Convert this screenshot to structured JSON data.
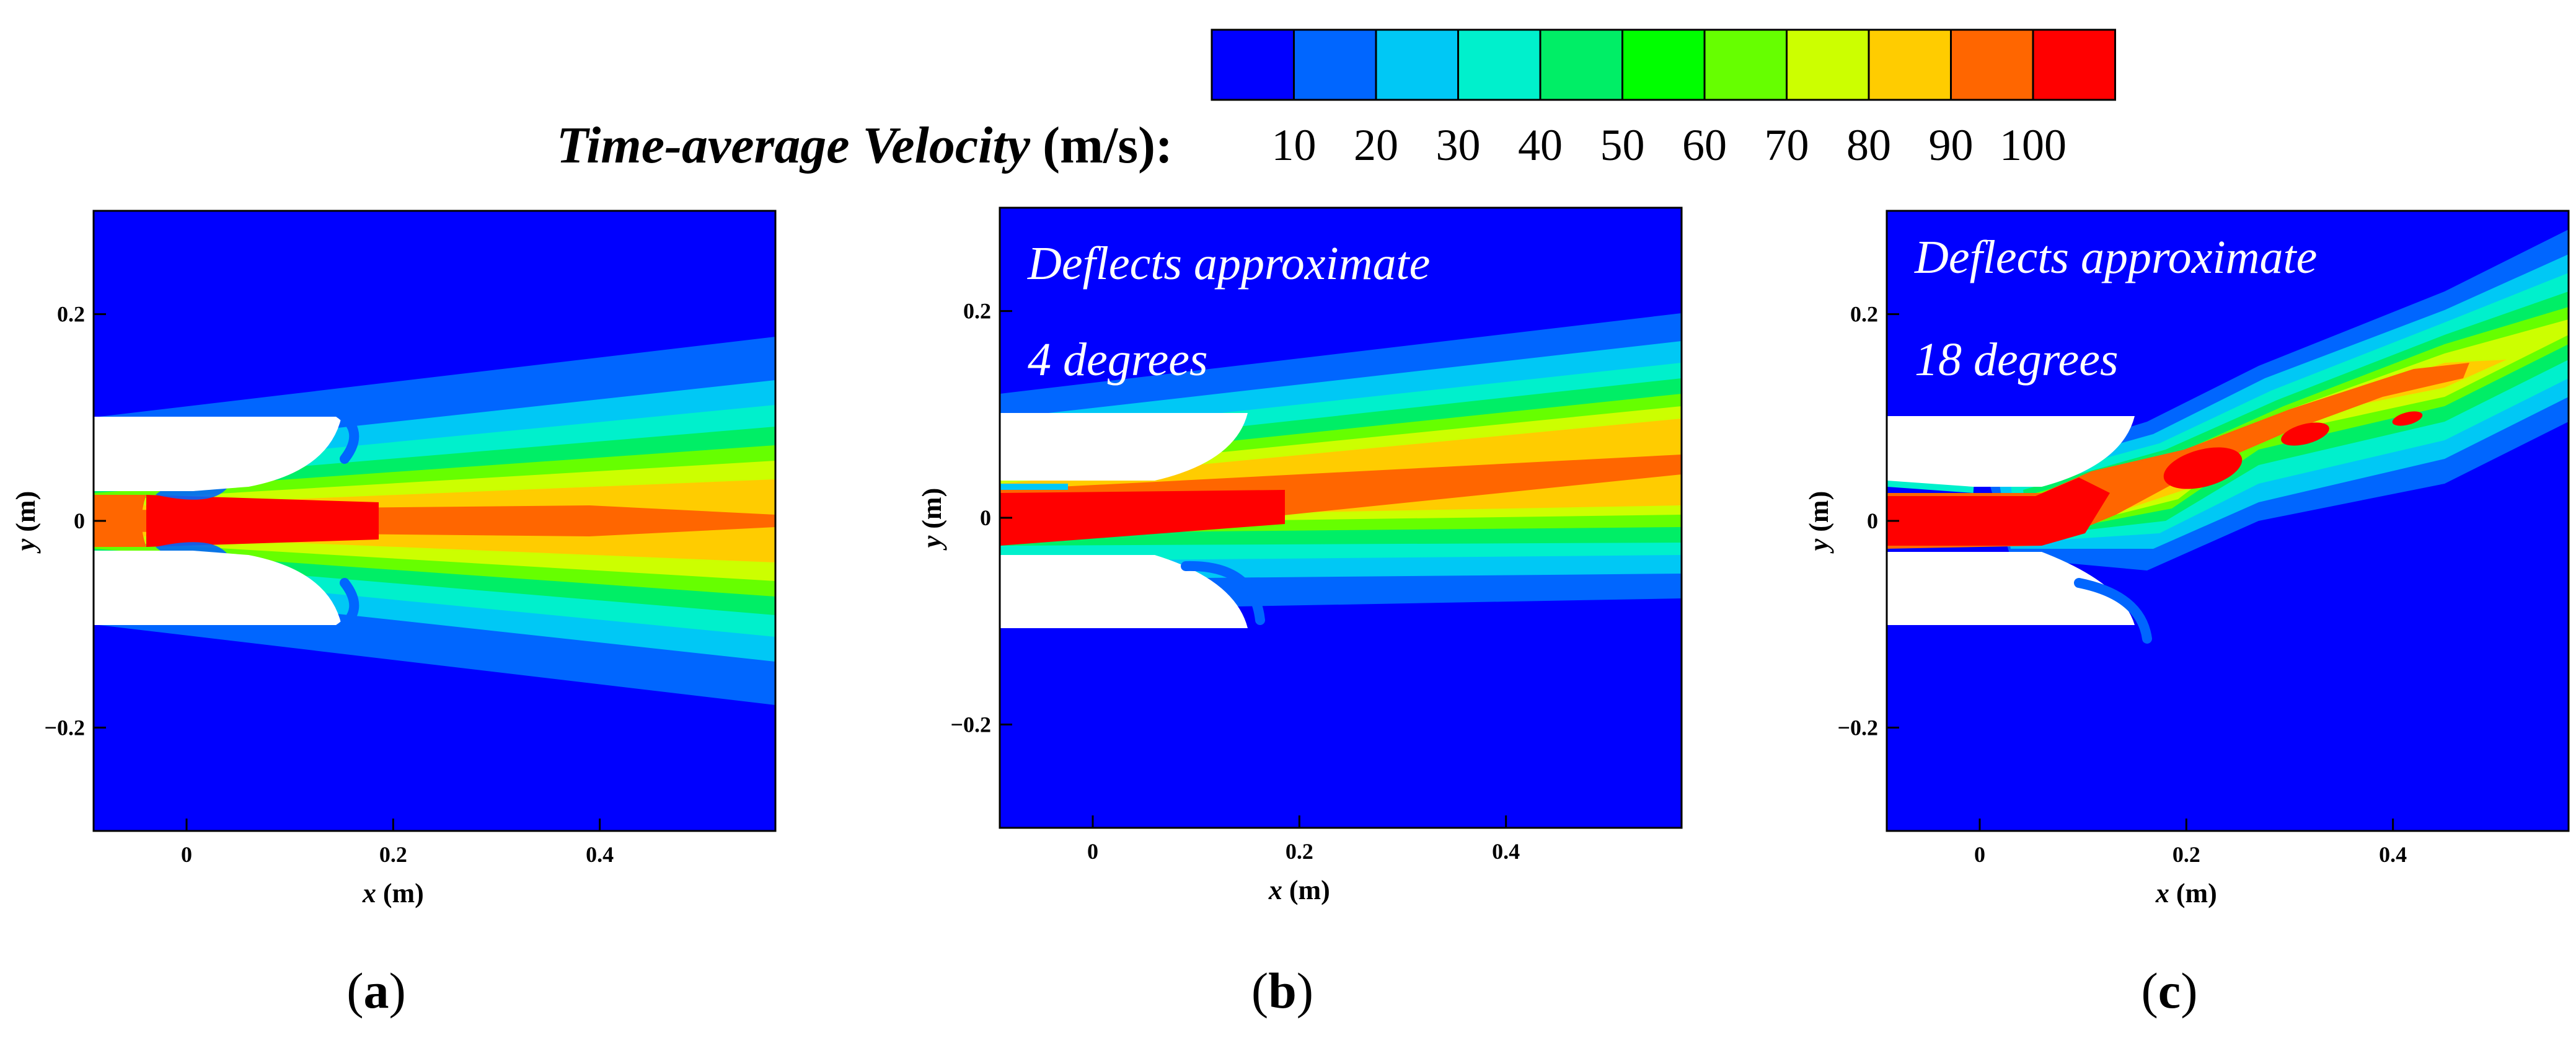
{
  "colorbar": {
    "title_italic": "Time-average Velocity",
    "title_unit": "(m/s):",
    "levels": [
      "10",
      "20",
      "30",
      "40",
      "50",
      "60",
      "70",
      "80",
      "90",
      "100"
    ],
    "colors": [
      "#0000ff",
      "#0066ff",
      "#00c8f5",
      "#00f0cc",
      "#00ee66",
      "#00ff00",
      "#66ff00",
      "#ccff00",
      "#ffcc00",
      "#ff6600",
      "#ff0000"
    ]
  },
  "chart_data": [
    {
      "type": "heatmap",
      "panel_label": "a",
      "xlabel": "x (m)",
      "ylabel": "y (m)",
      "xlim": [
        -0.09,
        0.57
      ],
      "ylim": [
        -0.3,
        0.3
      ],
      "xticks": [
        "0",
        "0.2",
        "0.4"
      ],
      "yticks": [
        "0.2",
        "0",
        "−0.2"
      ],
      "annotation": [],
      "jet_deflection_deg": 0,
      "jet_core_max_velocity": 100
    },
    {
      "type": "heatmap",
      "panel_label": "b",
      "xlabel": "x (m)",
      "ylabel": "y (m)",
      "xlim": [
        -0.09,
        0.57
      ],
      "ylim": [
        -0.3,
        0.3
      ],
      "xticks": [
        "0",
        "0.2",
        "0.4"
      ],
      "yticks": [
        "0.2",
        "0",
        "−0.2"
      ],
      "annotation": [
        "Deflects approximate",
        "4 degrees"
      ],
      "jet_deflection_deg": 4,
      "jet_core_max_velocity": 100
    },
    {
      "type": "heatmap",
      "panel_label": "c",
      "xlabel": "x (m)",
      "ylabel": "y (m)",
      "xlim": [
        -0.09,
        0.57
      ],
      "ylim": [
        -0.3,
        0.3
      ],
      "xticks": [
        "0",
        "0.2",
        "0.4"
      ],
      "yticks": [
        "0.2",
        "0",
        "−0.2"
      ],
      "annotation": [
        "Deflects approximate",
        "18 degrees"
      ],
      "jet_deflection_deg": 18,
      "jet_core_max_velocity": 100
    }
  ]
}
